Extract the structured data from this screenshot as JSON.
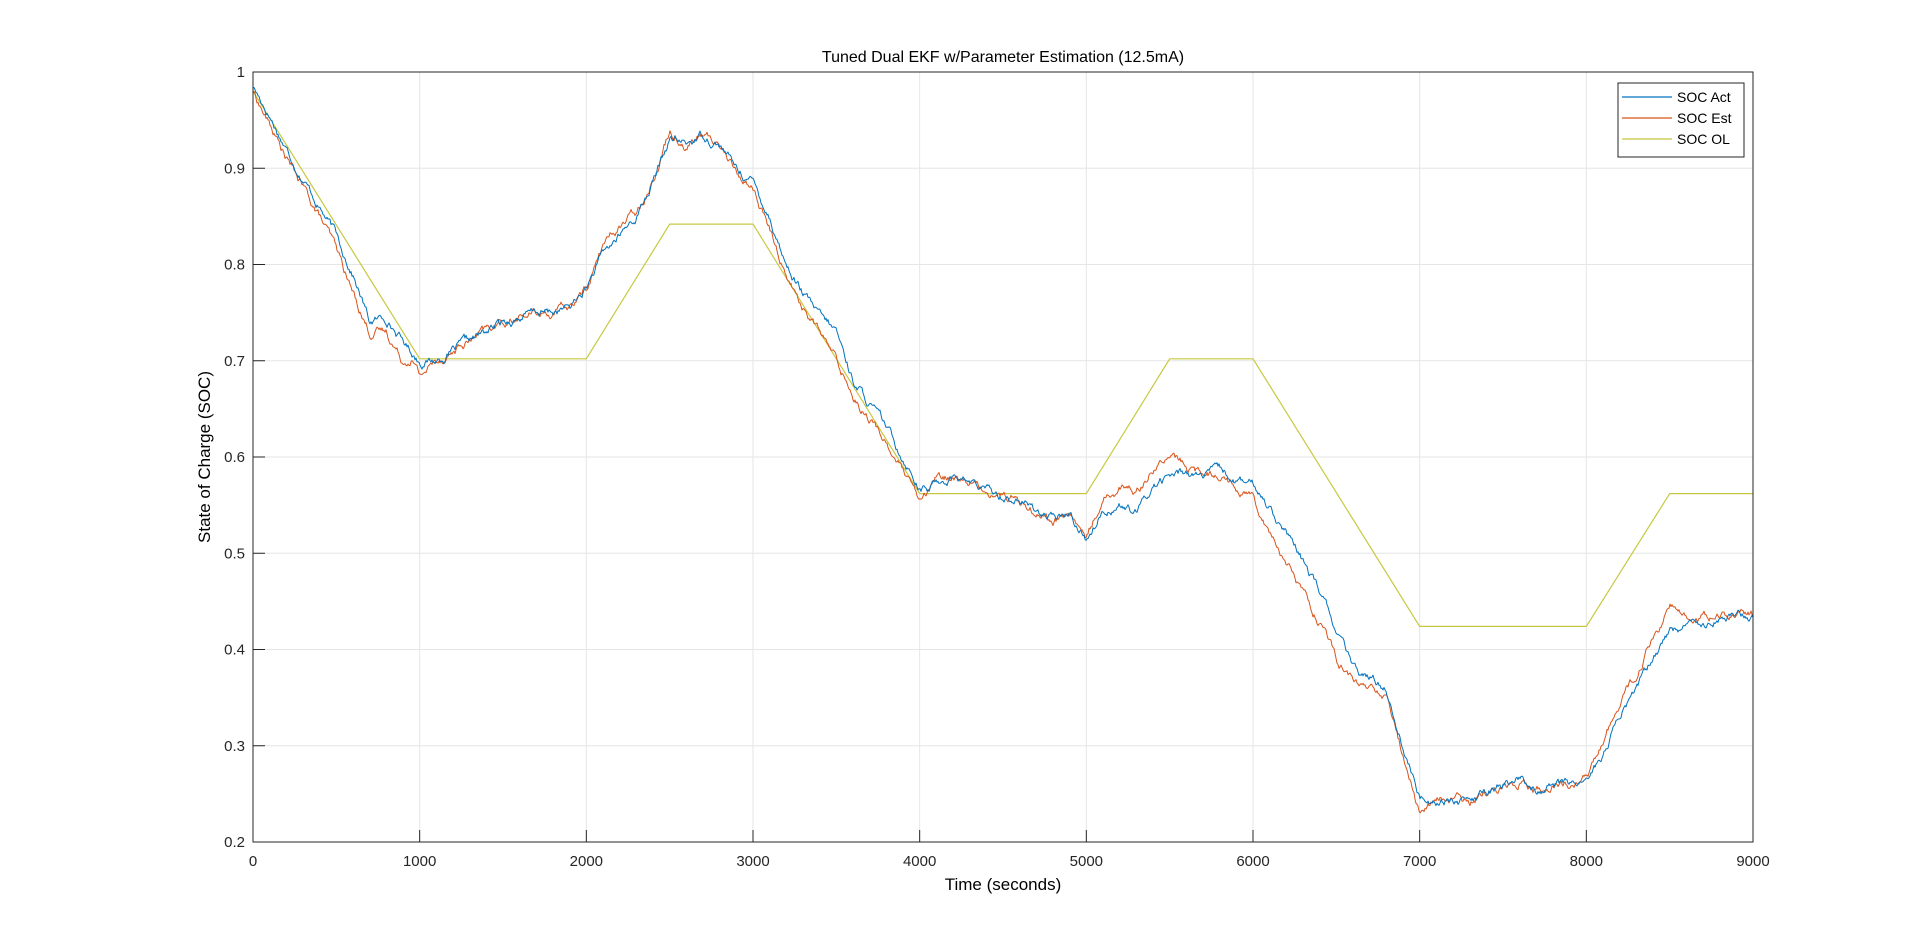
{
  "chart_data": {
    "type": "line",
    "title": "Tuned Dual EKF w/Parameter Estimation (12.5mA)",
    "xlabel": "Time (seconds)",
    "ylabel": "State of Charge (SOC)",
    "xlim": [
      0,
      9000
    ],
    "ylim": [
      0.2,
      1.0
    ],
    "xticks": [
      0,
      1000,
      2000,
      3000,
      4000,
      5000,
      6000,
      7000,
      8000,
      9000
    ],
    "xtick_labels": [
      "0",
      "1000",
      "2000",
      "3000",
      "4000",
      "5000",
      "6000",
      "7000",
      "8000",
      "9000"
    ],
    "yticks": [
      0.2,
      0.3,
      0.4,
      0.5,
      0.6,
      0.7,
      0.8,
      0.9,
      1.0
    ],
    "ytick_labels": [
      "0.2",
      "0.3",
      "0.4",
      "0.5",
      "0.6",
      "0.7",
      "0.8",
      "0.9",
      "1"
    ],
    "grid": true,
    "legend_position": "top-right",
    "series": [
      {
        "name": "SOC Act",
        "color": "#0072BD",
        "noise": 0.004,
        "x": [
          0,
          100,
          200,
          300,
          400,
          500,
          600,
          700,
          800,
          900,
          1000,
          1100,
          1200,
          1300,
          1400,
          1500,
          1600,
          1700,
          1800,
          1900,
          2000,
          2100,
          2200,
          2300,
          2400,
          2500,
          2600,
          2700,
          2800,
          2900,
          3000,
          3100,
          3200,
          3300,
          3400,
          3500,
          3600,
          3700,
          3800,
          3900,
          4000,
          4050,
          4100,
          4200,
          4300,
          4400,
          4500,
          4600,
          4700,
          4800,
          4900,
          5000,
          5100,
          5200,
          5300,
          5400,
          5500,
          5600,
          5700,
          5800,
          5900,
          6000,
          6100,
          6200,
          6300,
          6400,
          6500,
          6600,
          6700,
          6800,
          6900,
          7000,
          7050,
          7100,
          7200,
          7300,
          7400,
          7500,
          7600,
          7700,
          7800,
          7900,
          8000,
          8100,
          8200,
          8300,
          8400,
          8500,
          8600,
          8700,
          8800,
          8900,
          9000
        ],
        "y": [
          0.985,
          0.955,
          0.92,
          0.89,
          0.86,
          0.83,
          0.79,
          0.74,
          0.745,
          0.72,
          0.7,
          0.7,
          0.71,
          0.72,
          0.73,
          0.74,
          0.745,
          0.75,
          0.75,
          0.755,
          0.775,
          0.81,
          0.83,
          0.85,
          0.885,
          0.93,
          0.925,
          0.935,
          0.925,
          0.9,
          0.885,
          0.85,
          0.8,
          0.77,
          0.745,
          0.73,
          0.68,
          0.655,
          0.63,
          0.6,
          0.57,
          0.565,
          0.575,
          0.58,
          0.575,
          0.565,
          0.56,
          0.555,
          0.545,
          0.535,
          0.54,
          0.515,
          0.545,
          0.55,
          0.54,
          0.57,
          0.58,
          0.585,
          0.58,
          0.585,
          0.575,
          0.57,
          0.55,
          0.52,
          0.49,
          0.46,
          0.42,
          0.38,
          0.37,
          0.36,
          0.3,
          0.245,
          0.245,
          0.245,
          0.245,
          0.24,
          0.25,
          0.26,
          0.265,
          0.255,
          0.26,
          0.26,
          0.265,
          0.29,
          0.33,
          0.36,
          0.39,
          0.42,
          0.425,
          0.43,
          0.435,
          0.435,
          0.435
        ]
      },
      {
        "name": "SOC Est",
        "color": "#D95319",
        "noise": 0.004,
        "x": [
          0,
          100,
          200,
          300,
          400,
          500,
          600,
          700,
          800,
          900,
          950,
          1000,
          1100,
          1200,
          1300,
          1400,
          1500,
          1600,
          1700,
          1800,
          1900,
          2000,
          2100,
          2200,
          2300,
          2400,
          2500,
          2600,
          2700,
          2800,
          2900,
          3000,
          3100,
          3200,
          3300,
          3400,
          3500,
          3600,
          3700,
          3800,
          3900,
          4000,
          4100,
          4200,
          4300,
          4400,
          4500,
          4600,
          4700,
          4800,
          4900,
          5000,
          5100,
          5200,
          5300,
          5400,
          5500,
          5600,
          5700,
          5800,
          5900,
          6000,
          6100,
          6200,
          6300,
          6400,
          6500,
          6600,
          6700,
          6800,
          6900,
          7000,
          7100,
          7200,
          7300,
          7400,
          7500,
          7600,
          7700,
          7800,
          7900,
          8000,
          8100,
          8200,
          8300,
          8400,
          8500,
          8600,
          8700,
          8800,
          8900,
          9000
        ],
        "y": [
          0.98,
          0.945,
          0.91,
          0.88,
          0.85,
          0.815,
          0.77,
          0.73,
          0.73,
          0.7,
          0.705,
          0.685,
          0.7,
          0.71,
          0.72,
          0.73,
          0.74,
          0.745,
          0.75,
          0.75,
          0.755,
          0.775,
          0.82,
          0.84,
          0.855,
          0.89,
          0.94,
          0.925,
          0.935,
          0.925,
          0.895,
          0.88,
          0.835,
          0.79,
          0.755,
          0.73,
          0.7,
          0.665,
          0.64,
          0.615,
          0.585,
          0.55,
          0.575,
          0.58,
          0.575,
          0.565,
          0.56,
          0.555,
          0.545,
          0.535,
          0.54,
          0.515,
          0.56,
          0.57,
          0.565,
          0.59,
          0.6,
          0.59,
          0.58,
          0.585,
          0.57,
          0.56,
          0.525,
          0.49,
          0.46,
          0.43,
          0.39,
          0.365,
          0.36,
          0.35,
          0.29,
          0.23,
          0.245,
          0.245,
          0.24,
          0.25,
          0.26,
          0.265,
          0.255,
          0.26,
          0.26,
          0.265,
          0.305,
          0.345,
          0.375,
          0.41,
          0.445,
          0.43,
          0.435,
          0.435,
          0.435,
          0.435
        ]
      },
      {
        "name": "SOC OL",
        "color": "#C8C840",
        "noise": 0,
        "x": [
          0,
          1000,
          2000,
          2500,
          3000,
          4000,
          5000,
          5500,
          6000,
          7000,
          8000,
          8500,
          9000
        ],
        "y": [
          0.98,
          0.702,
          0.702,
          0.842,
          0.842,
          0.562,
          0.562,
          0.702,
          0.702,
          0.424,
          0.424,
          0.562,
          0.562
        ]
      }
    ]
  }
}
